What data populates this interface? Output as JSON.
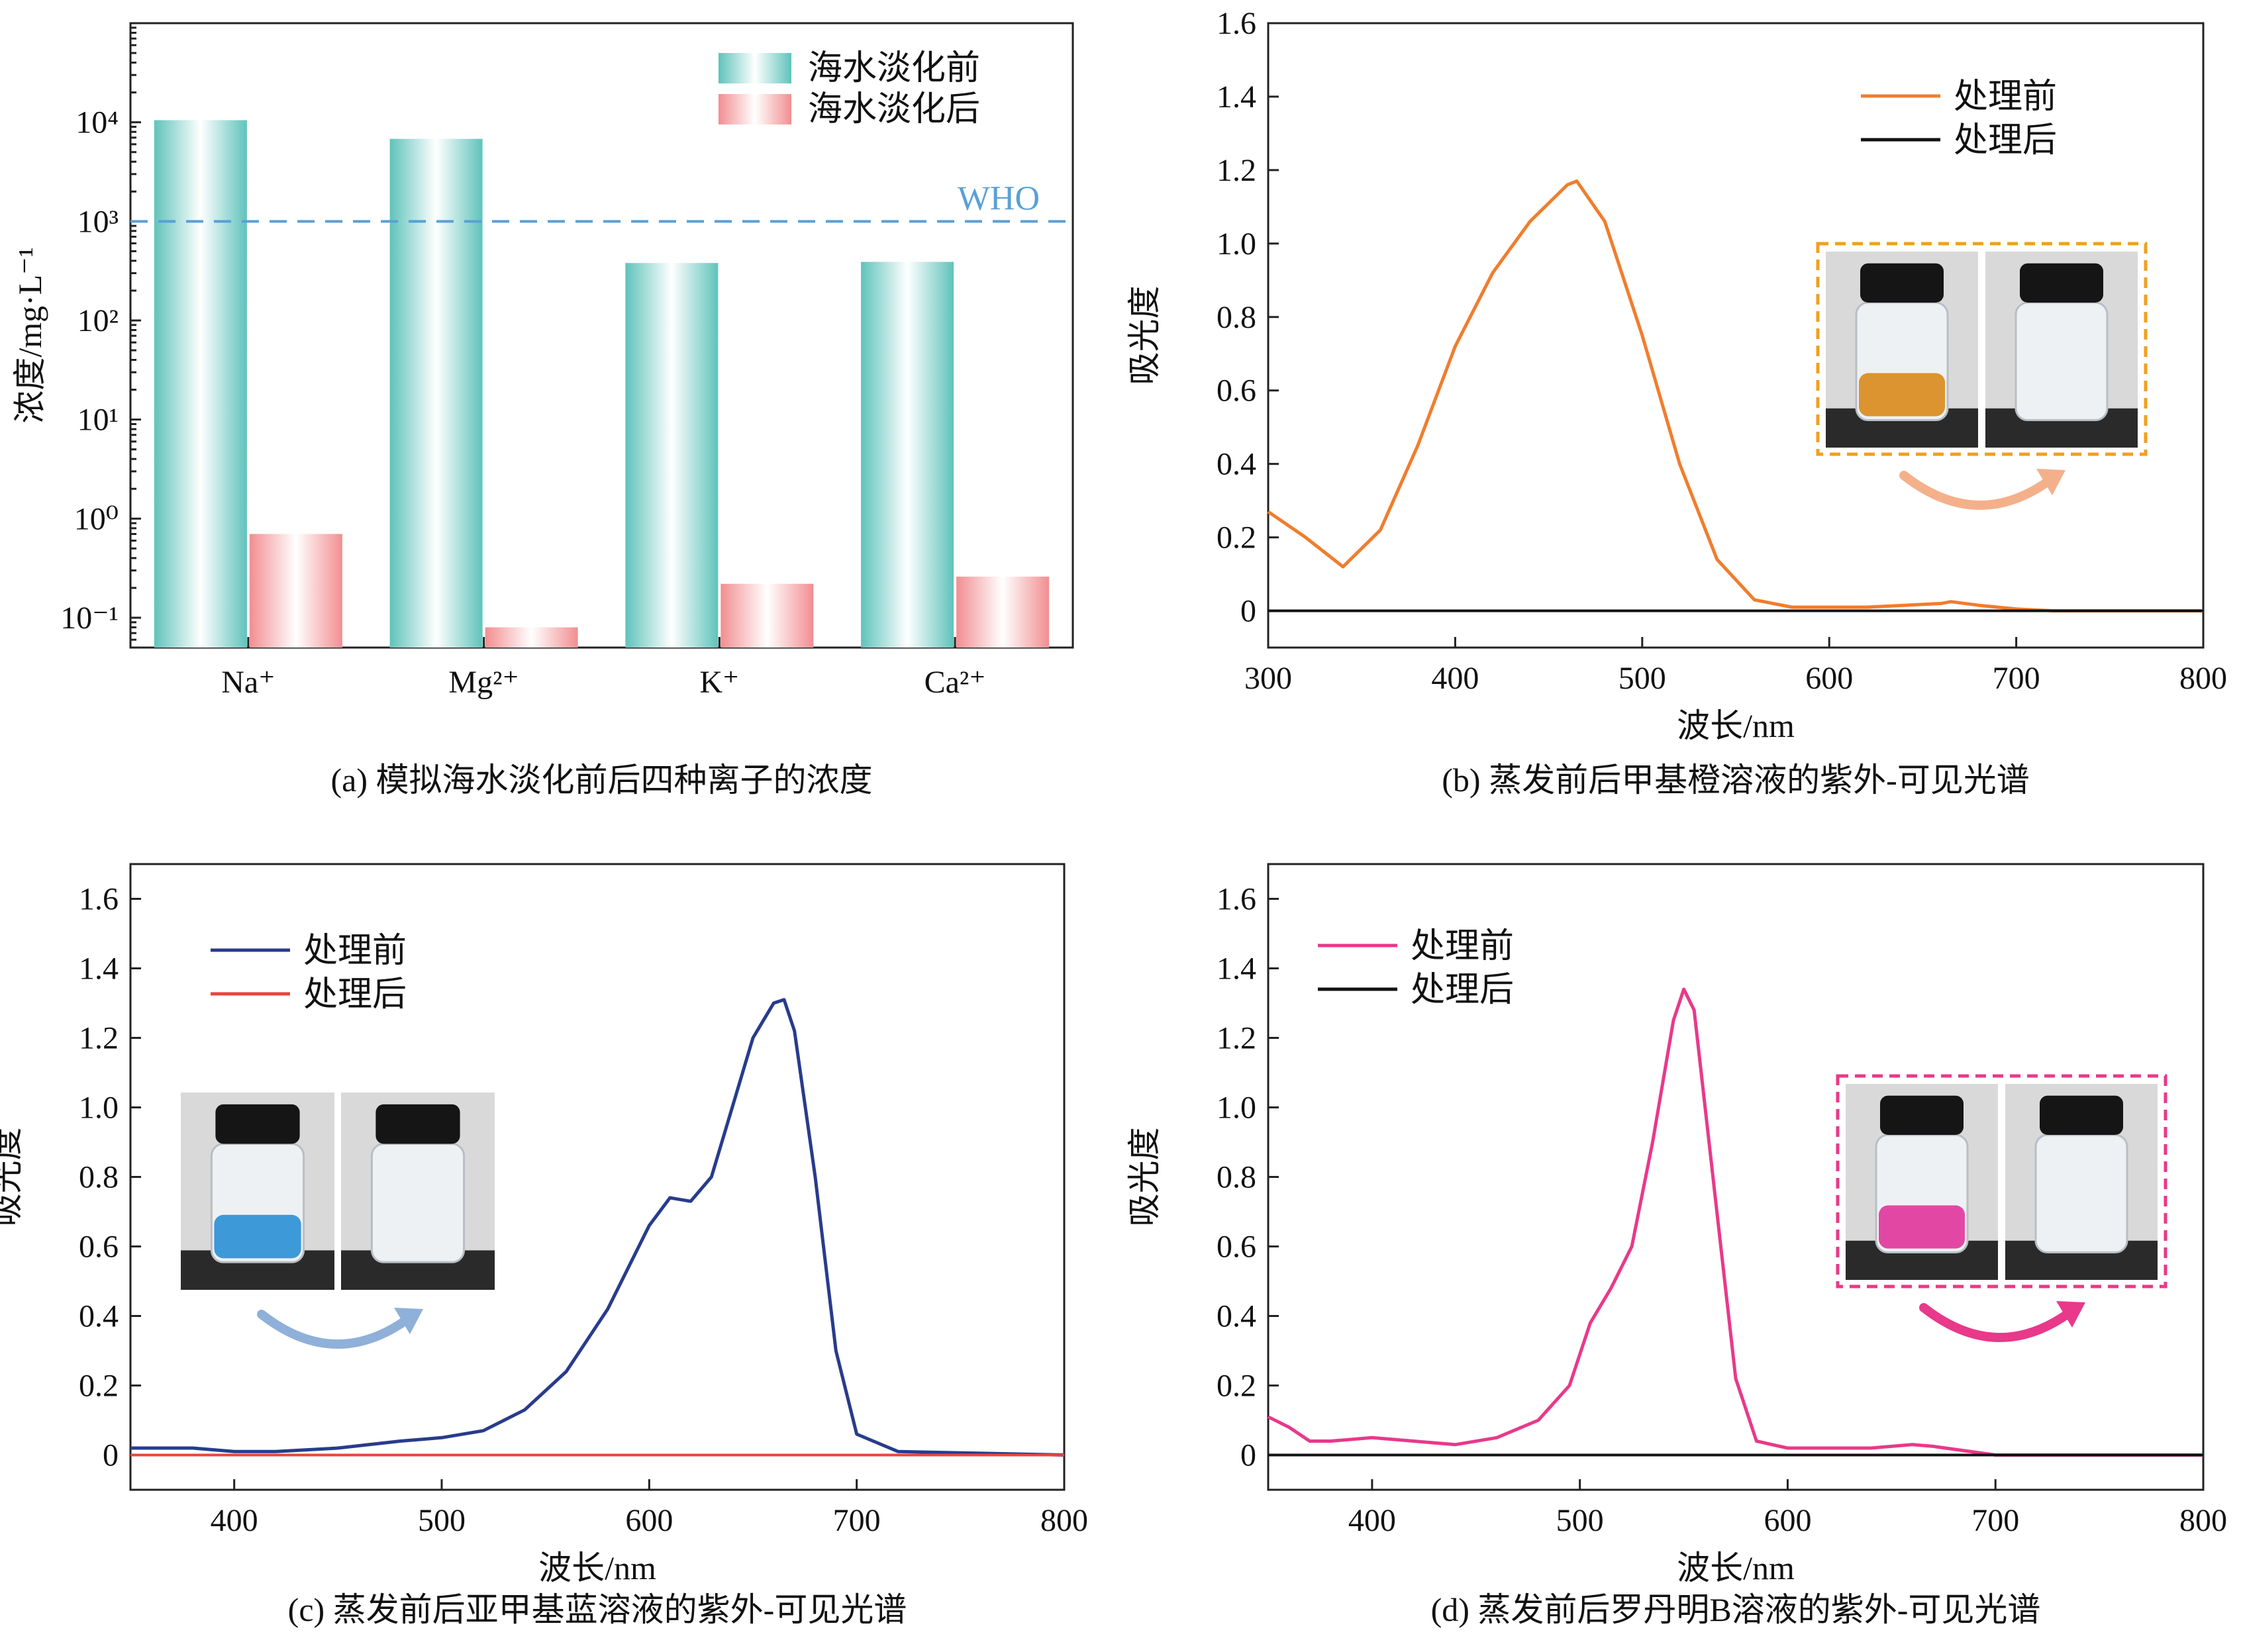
{
  "colors": {
    "teal": "#5fc3bb",
    "pink": "#f28e91",
    "who_line": "#5aa0d6",
    "orange": "#f07d2e",
    "navy": "#283c8c",
    "red": "#e8453c",
    "magenta": "#e8398a",
    "black": "#111111",
    "inset_frame_b": "#f0a020",
    "inset_frame_d": "#e8398a",
    "arrow_b": "#f4b08a",
    "arrow_c": "#8fb0d8",
    "arrow_d": "#e8398a"
  },
  "chart_data": [
    {
      "id": "a",
      "type": "bar",
      "caption": "(a) 模拟海水淡化前后四种离子的浓度",
      "ylabel": "浓度/mg·L⁻¹",
      "yscale": "log",
      "ylim": [
        0.05,
        100000
      ],
      "yticks": [
        "10⁻¹",
        "10⁰",
        "10¹",
        "10²",
        "10³",
        "10⁴"
      ],
      "ytick_values": [
        0.1,
        1,
        10,
        100,
        1000,
        10000
      ],
      "categories": [
        "Na⁺",
        "Mg²⁺",
        "K⁺",
        "Ca²⁺"
      ],
      "series": [
        {
          "name": "海水淡化前",
          "values": [
            10500,
            6800,
            380,
            390
          ]
        },
        {
          "name": "海水淡化后",
          "values": [
            0.7,
            0.08,
            0.22,
            0.26
          ]
        }
      ],
      "reference_line": {
        "label": "WHO",
        "value": 1000
      },
      "legend_position": "top-right"
    },
    {
      "id": "b",
      "type": "line",
      "caption": "(b) 蒸发前后甲基橙溶液的紫外-可见光谱",
      "xlabel": "波长/nm",
      "ylabel": "吸光度",
      "xlim": [
        300,
        800
      ],
      "ylim": [
        -0.1,
        1.6
      ],
      "xticks": [
        "300",
        "400",
        "500",
        "600",
        "700",
        "800"
      ],
      "yticks": [
        "0",
        "0.2",
        "0.4",
        "0.6",
        "0.8",
        "1.0",
        "1.2",
        "1.4",
        "1.6"
      ],
      "legend_position": "top-right",
      "series": [
        {
          "name": "处理前",
          "color_key": "orange",
          "x": [
            300,
            320,
            340,
            360,
            380,
            400,
            420,
            440,
            460,
            465,
            480,
            500,
            520,
            540,
            560,
            580,
            600,
            620,
            640,
            660,
            665,
            680,
            700,
            720,
            800
          ],
          "y": [
            0.27,
            0.2,
            0.12,
            0.22,
            0.45,
            0.72,
            0.92,
            1.06,
            1.16,
            1.17,
            1.06,
            0.75,
            0.4,
            0.14,
            0.03,
            0.01,
            0.01,
            0.01,
            0.015,
            0.02,
            0.025,
            0.015,
            0.005,
            0.0,
            0.0
          ]
        },
        {
          "name": "处理后",
          "color_key": "black",
          "x": [
            300,
            800
          ],
          "y": [
            0.0,
            0.0
          ]
        }
      ]
    },
    {
      "id": "c",
      "type": "line",
      "caption": "(c) 蒸发前后亚甲基蓝溶液的紫外-可见光谱",
      "xlabel": "波长/nm",
      "ylabel": "吸光度",
      "xlim": [
        350,
        800
      ],
      "ylim": [
        -0.1,
        1.7
      ],
      "xticks": [
        "400",
        "500",
        "600",
        "700",
        "800"
      ],
      "yticks": [
        "0",
        "0.2",
        "0.4",
        "0.6",
        "0.8",
        "1.0",
        "1.2",
        "1.4",
        "1.6"
      ],
      "legend_position": "top-left",
      "series": [
        {
          "name": "处理前",
          "color_key": "navy",
          "x": [
            350,
            380,
            400,
            420,
            450,
            480,
            500,
            520,
            540,
            560,
            580,
            600,
            610,
            620,
            630,
            640,
            650,
            660,
            665,
            670,
            680,
            690,
            700,
            720,
            800
          ],
          "y": [
            0.02,
            0.02,
            0.01,
            0.01,
            0.02,
            0.04,
            0.05,
            0.07,
            0.13,
            0.24,
            0.42,
            0.66,
            0.74,
            0.73,
            0.8,
            1.0,
            1.2,
            1.3,
            1.31,
            1.22,
            0.8,
            0.3,
            0.06,
            0.01,
            0.0
          ]
        },
        {
          "name": "处理后",
          "color_key": "red",
          "x": [
            350,
            800
          ],
          "y": [
            0.0,
            0.0
          ]
        }
      ]
    },
    {
      "id": "d",
      "type": "line",
      "caption": "(d) 蒸发前后罗丹明B溶液的紫外-可见光谱",
      "xlabel": "波长/nm",
      "ylabel": "吸光度",
      "xlim": [
        350,
        800
      ],
      "ylim": [
        -0.1,
        1.7
      ],
      "xticks": [
        "400",
        "500",
        "600",
        "700",
        "800"
      ],
      "yticks": [
        "0",
        "0.2",
        "0.4",
        "0.6",
        "0.8",
        "1.0",
        "1.2",
        "1.4",
        "1.6"
      ],
      "legend_position": "top-left",
      "series": [
        {
          "name": "处理前",
          "color_key": "magenta",
          "x": [
            350,
            360,
            370,
            380,
            400,
            420,
            440,
            460,
            480,
            495,
            505,
            515,
            525,
            535,
            545,
            550,
            555,
            565,
            575,
            585,
            600,
            640,
            660,
            670,
            700,
            800
          ],
          "y": [
            0.11,
            0.08,
            0.04,
            0.04,
            0.05,
            0.04,
            0.03,
            0.05,
            0.1,
            0.2,
            0.38,
            0.48,
            0.6,
            0.9,
            1.25,
            1.34,
            1.28,
            0.75,
            0.22,
            0.04,
            0.02,
            0.02,
            0.03,
            0.025,
            0.0,
            0.0
          ]
        },
        {
          "name": "处理后",
          "color_key": "black",
          "x": [
            350,
            800
          ],
          "y": [
            0.0,
            0.0
          ]
        }
      ]
    }
  ]
}
